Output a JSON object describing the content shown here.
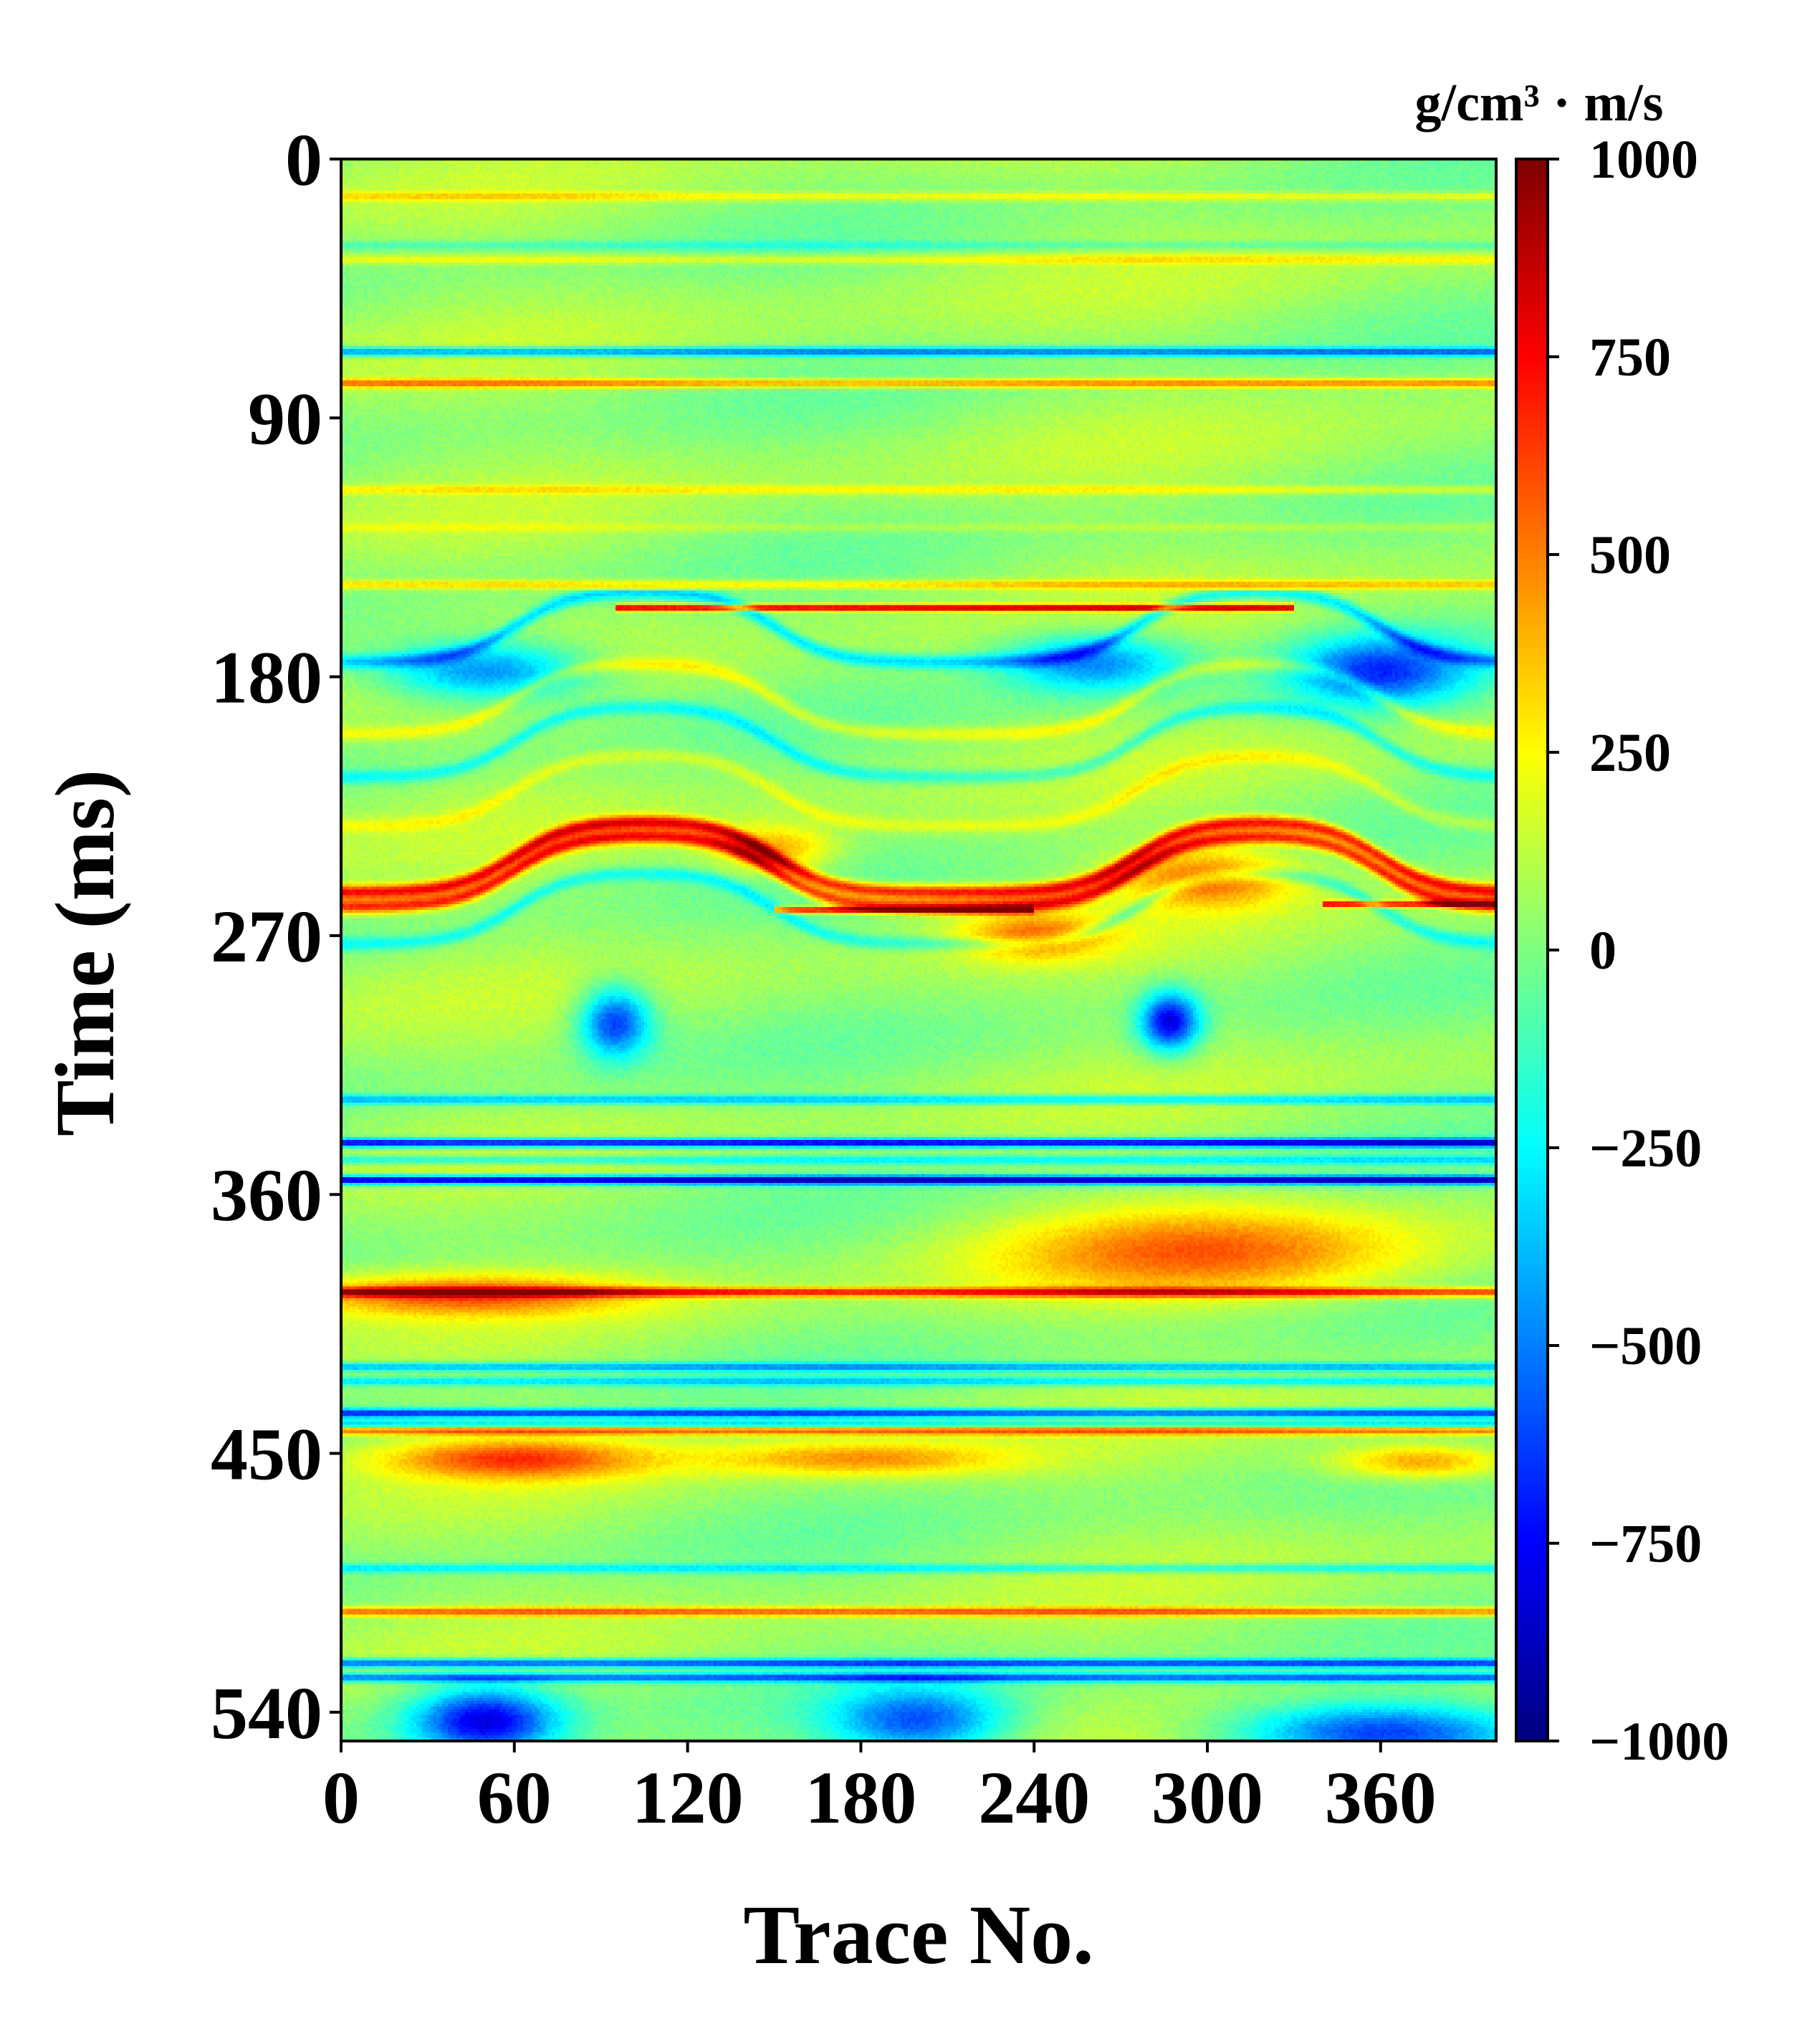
{
  "chart_data": {
    "type": "heatmap",
    "title": "",
    "xlabel": "Trace No.",
    "ylabel": "Time (ms)",
    "xlim": [
      0,
      400
    ],
    "ylim": [
      550,
      0
    ],
    "x_ticks": [
      0,
      60,
      120,
      180,
      240,
      300,
      360
    ],
    "y_ticks": [
      0,
      90,
      180,
      270,
      360,
      450,
      540
    ],
    "colormap": "jet",
    "colorbar": {
      "label": "g/cm³ · m/s",
      "vmin": -1000,
      "vmax": 1000,
      "ticks": [
        1000,
        750,
        500,
        250,
        0,
        -250,
        -500,
        -750,
        -1000
      ],
      "tick_labels": [
        "1000",
        "750",
        "500",
        "250",
        "0",
        "−250",
        "−500",
        "−750",
        "−1000"
      ]
    },
    "background_value": 50,
    "horizontal_layers": [
      {
        "t": 13,
        "value": 220
      },
      {
        "t": 30,
        "value": -150
      },
      {
        "t": 35,
        "value": 200
      },
      {
        "t": 67,
        "value": -550
      },
      {
        "t": 78,
        "value": 450
      },
      {
        "t": 115,
        "value": 200
      },
      {
        "t": 128,
        "value": 100
      },
      {
        "t": 148,
        "value": 300
      },
      {
        "t": 327,
        "value": -400
      },
      {
        "t": 342,
        "value": -850
      },
      {
        "t": 348,
        "value": -300
      },
      {
        "t": 355,
        "value": -950
      },
      {
        "t": 394,
        "value": 650
      },
      {
        "t": 420,
        "value": -450
      },
      {
        "t": 425,
        "value": -350
      },
      {
        "t": 436,
        "value": -700
      },
      {
        "t": 440,
        "value": -400
      },
      {
        "t": 442,
        "value": 550
      },
      {
        "t": 490,
        "value": -300
      },
      {
        "t": 505,
        "value": 500
      },
      {
        "t": 523,
        "value": -650
      },
      {
        "t": 528,
        "value": -600
      }
    ],
    "warped_layers": [
      {
        "t": 175,
        "value": -350,
        "amp": 25
      },
      {
        "t": 200,
        "value": 200,
        "amp": 25
      },
      {
        "t": 215,
        "value": -250,
        "amp": 25
      },
      {
        "t": 232,
        "value": 150,
        "amp": 25
      },
      {
        "t": 255,
        "value": 700,
        "amp": 25
      },
      {
        "t": 260,
        "value": 650,
        "amp": 25
      },
      {
        "t": 273,
        "value": -250,
        "amp": 25
      }
    ],
    "bright_streaks": [
      {
        "t": 156,
        "x0": 95,
        "x1": 330,
        "value": 850
      },
      {
        "t": 261,
        "x0": 150,
        "x1": 240,
        "value": 800
      },
      {
        "t": 259,
        "x0": 340,
        "x1": 400,
        "value": 700
      }
    ],
    "blobs": [
      {
        "x": 50,
        "t": 178,
        "rx": 35,
        "rt": 10,
        "value": -600
      },
      {
        "x": 260,
        "t": 175,
        "rx": 30,
        "rt": 10,
        "value": -550
      },
      {
        "x": 360,
        "t": 178,
        "rx": 30,
        "rt": 12,
        "value": -650
      },
      {
        "x": 95,
        "t": 300,
        "rx": 12,
        "rt": 12,
        "value": -700
      },
      {
        "x": 287,
        "t": 300,
        "rx": 10,
        "rt": 10,
        "value": -850
      },
      {
        "x": 300,
        "t": 250,
        "rx": 30,
        "rt": 10,
        "value": 500
      },
      {
        "x": 240,
        "t": 270,
        "rx": 25,
        "rt": 8,
        "value": 450
      },
      {
        "x": 150,
        "t": 240,
        "rx": 20,
        "rt": 8,
        "value": 400
      },
      {
        "x": 300,
        "t": 380,
        "rx": 70,
        "rt": 15,
        "value": 450
      },
      {
        "x": 40,
        "t": 395,
        "rx": 60,
        "rt": 7,
        "value": 500
      },
      {
        "x": 60,
        "t": 452,
        "rx": 45,
        "rt": 7,
        "value": 550
      },
      {
        "x": 180,
        "t": 452,
        "rx": 50,
        "rt": 6,
        "value": 400
      },
      {
        "x": 375,
        "t": 453,
        "rx": 30,
        "rt": 6,
        "value": 450
      },
      {
        "x": 50,
        "t": 543,
        "rx": 25,
        "rt": 12,
        "value": -850
      },
      {
        "x": 200,
        "t": 543,
        "rx": 30,
        "rt": 12,
        "value": -600
      },
      {
        "x": 360,
        "t": 547,
        "rx": 50,
        "rt": 10,
        "value": -700
      }
    ]
  }
}
